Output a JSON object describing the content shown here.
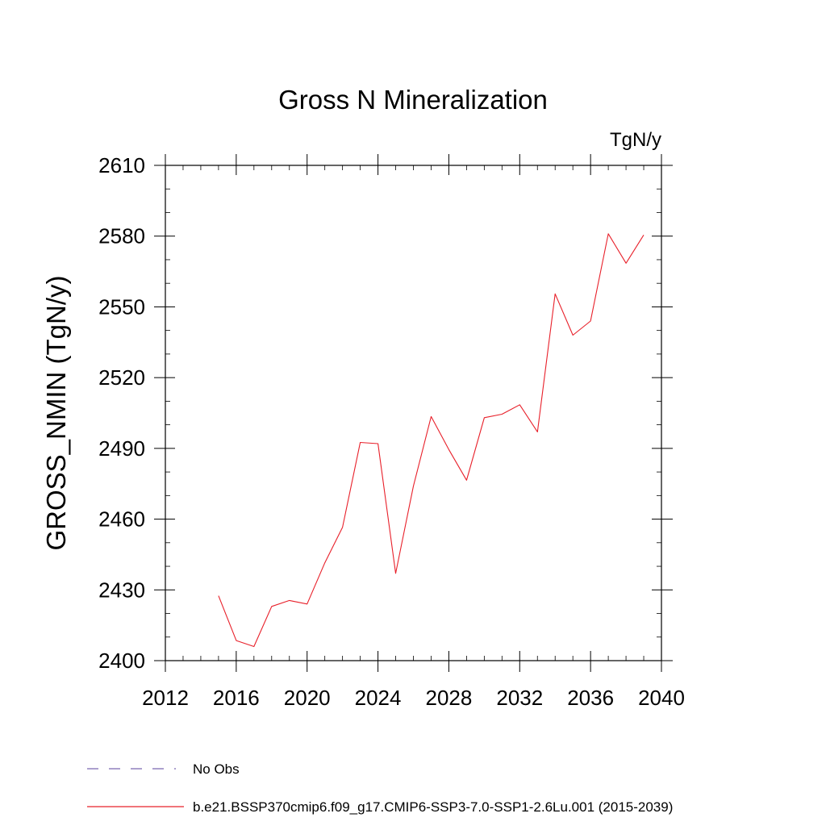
{
  "chart_data": {
    "type": "line",
    "title": "Gross N Mineralization",
    "units_label": "TgN/y",
    "ylabel": "GROSS_NMIN  (TgN/y)",
    "xlabel": "",
    "xlim": [
      2012,
      2040
    ],
    "ylim": [
      2400,
      2610
    ],
    "x_ticks": [
      2012,
      2016,
      2020,
      2024,
      2028,
      2032,
      2036,
      2040
    ],
    "y_ticks": [
      2400,
      2430,
      2460,
      2490,
      2520,
      2550,
      2580,
      2610
    ],
    "grid": false,
    "series": [
      {
        "name": "b.e21.BSSP370cmip6.f09_g17.CMIP6-SSP3-7.0-SSP1-2.6Lu.001 (2015-2039)",
        "color": "#e8202a",
        "x": [
          2015,
          2016,
          2017,
          2018,
          2019,
          2020,
          2021,
          2022,
          2023,
          2024,
          2025,
          2026,
          2027,
          2028,
          2029,
          2030,
          2031,
          2032,
          2033,
          2034,
          2035,
          2036,
          2037,
          2038,
          2039
        ],
        "values": [
          2427.5,
          2408.5,
          2406,
          2423,
          2425.5,
          2424,
          2441.5,
          2456.5,
          2492.5,
          2492,
          2437,
          2474,
          2503.5,
          2489.5,
          2476.5,
          2503,
          2504.5,
          2508.5,
          2497,
          2555.5,
          2538,
          2544,
          2581,
          2568.5,
          2580.5
        ]
      }
    ],
    "legend": [
      {
        "label": "No Obs",
        "color": "#7b68b0",
        "style": "dashed"
      },
      {
        "label": "b.e21.BSSP370cmip6.f09_g17.CMIP6-SSP3-7.0-SSP1-2.6Lu.001 (2015-2039)",
        "color": "#e8202a",
        "style": "solid"
      }
    ],
    "legend_position": "bottom"
  }
}
